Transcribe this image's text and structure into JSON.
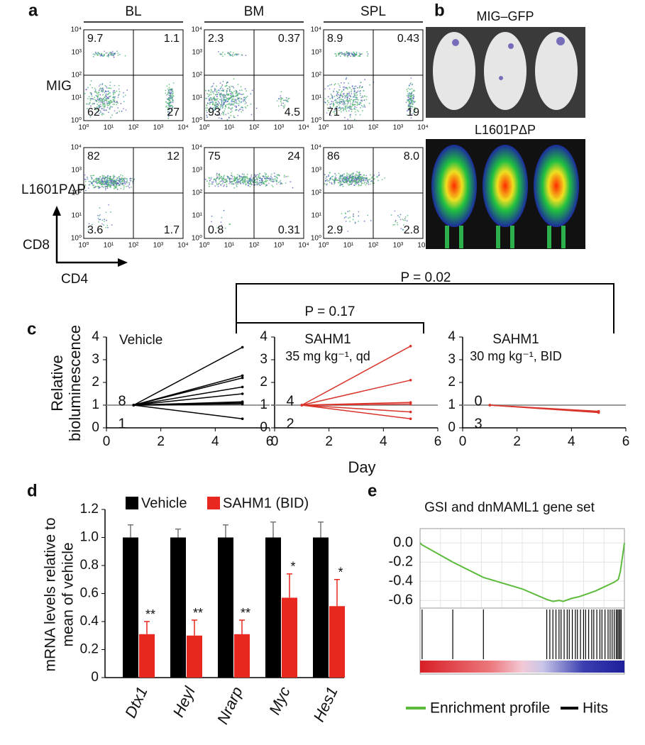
{
  "panel_labels": [
    "a",
    "b",
    "c",
    "d",
    "e"
  ],
  "flow": {
    "columns": [
      "BL",
      "BM",
      "SPL"
    ],
    "rows": [
      {
        "name": "MIG",
        "quadrants": [
          [
            9.7,
            1.1,
            62,
            27
          ],
          [
            2.3,
            0.37,
            93,
            4.5
          ],
          [
            8.9,
            0.43,
            71,
            19
          ]
        ]
      },
      {
        "name": "L1601PΔP",
        "quadrants": [
          [
            82,
            12,
            3.6,
            1.7
          ],
          [
            75,
            24,
            0.8,
            0.31
          ],
          [
            86,
            {
              "value": 8,
              "label": "8.0"
            },
            2.9,
            2.8
          ]
        ]
      }
    ],
    "ticks": [
      "10⁰",
      "10¹",
      "10²",
      "10³",
      "10⁴"
    ],
    "y_axis_label": "CD8",
    "x_axis_label": "CD4"
  },
  "imaging": {
    "titles": [
      "MIG–GFP",
      "L1601PΔP"
    ]
  },
  "comparisons": [
    "P = 0.17",
    "P = 0.02"
  ],
  "chart_data": [
    {
      "type": "line",
      "title": "Vehicle",
      "ylabel": [
        "Relative",
        "bioluminescence"
      ],
      "x": [
        1,
        5
      ],
      "count_above": 8,
      "count_below": 1,
      "hline": 1,
      "hline_color": "#999999",
      "xlim": [
        0,
        6
      ],
      "xticks": [
        0,
        2,
        4,
        6
      ],
      "ylim": [
        0,
        4
      ],
      "yticks": [
        0,
        1,
        2,
        3,
        4
      ],
      "series": [
        {
          "color": "#000000",
          "values": [
            1,
            3.55
          ]
        },
        {
          "color": "#000000",
          "values": [
            1,
            2.3
          ]
        },
        {
          "color": "#000000",
          "values": [
            1,
            2.2
          ]
        },
        {
          "color": "#000000",
          "values": [
            1,
            1.8
          ]
        },
        {
          "color": "#000000",
          "values": [
            1,
            1.5
          ]
        },
        {
          "color": "#000000",
          "values": [
            1,
            1.15
          ]
        },
        {
          "color": "#000000",
          "values": [
            1,
            1.1
          ]
        },
        {
          "color": "#000000",
          "values": [
            1,
            1.05
          ]
        },
        {
          "color": "#000000",
          "values": [
            1,
            0.4
          ]
        }
      ]
    },
    {
      "type": "line",
      "title": "SAHM1",
      "subtitle": "35 mg kg⁻¹, qd",
      "xlabel": "Day",
      "x": [
        1,
        5
      ],
      "count_above": 4,
      "count_below": 2,
      "hline": 1,
      "hline_color": "#999999",
      "xlim": [
        0,
        6
      ],
      "xticks": [
        0,
        2,
        4,
        6
      ],
      "ylim": [
        0,
        4
      ],
      "yticks": [
        0,
        1,
        2,
        3,
        4
      ],
      "series": [
        {
          "color": "#d9342b",
          "values": [
            1,
            3.6
          ]
        },
        {
          "color": "#d9342b",
          "values": [
            1,
            2.1
          ]
        },
        {
          "color": "#d9342b",
          "values": [
            1,
            1.12
          ]
        },
        {
          "color": "#d9342b",
          "values": [
            1,
            1.05
          ]
        },
        {
          "color": "#d9342b",
          "values": [
            1,
            0.7
          ]
        },
        {
          "color": "#d9342b",
          "values": [
            1,
            0.4
          ]
        }
      ]
    },
    {
      "type": "line",
      "title": "SAHM1",
      "subtitle": "30 mg kg⁻¹, BID",
      "x": [
        1,
        5
      ],
      "count_above": 0,
      "count_below": 3,
      "hline": 1,
      "hline_color": "#999999",
      "xlim": [
        0,
        6
      ],
      "xticks": [
        0,
        2,
        4,
        6
      ],
      "ylim": [
        0,
        4
      ],
      "yticks": [
        0,
        1,
        2,
        3,
        4
      ],
      "series": [
        {
          "color": "#d9342b",
          "values": [
            1,
            0.73
          ]
        },
        {
          "color": "#d9342b",
          "values": [
            1,
            0.7
          ]
        },
        {
          "color": "#d9342b",
          "values": [
            1,
            0.67
          ]
        }
      ]
    },
    {
      "type": "bar",
      "ylabel": [
        "mRNA levels relative to",
        "mean of vehicle"
      ],
      "categories": [
        "Dtx1",
        "Heyl",
        "Nrarp",
        "Myc",
        "Hes1"
      ],
      "ylim": [
        0,
        1.2
      ],
      "yticks": [
        0,
        0.2,
        0.4,
        0.6,
        0.8,
        {
          "value": 1,
          "label": "1.0"
        },
        1.2
      ],
      "series": [
        {
          "name": "Vehicle",
          "color": "#000000",
          "values": [
            1,
            1,
            1,
            1,
            1
          ],
          "errors": [
            0.09,
            0.06,
            0.09,
            0.11,
            0.11
          ]
        },
        {
          "name": "SAHM1 (BID)",
          "color": "#e8281e",
          "values": [
            0.31,
            0.3,
            0.31,
            0.57,
            0.51
          ],
          "errors": [
            0.09,
            0.11,
            0.1,
            0.17,
            0.19
          ]
        }
      ],
      "annotations": [
        "**",
        "**",
        "**",
        "*",
        "*"
      ]
    },
    {
      "type": "gsea",
      "title": "GSI and dnMAML1 gene set",
      "xlim": [
        0,
        100
      ],
      "ylim": [
        -0.68,
        0.15
      ],
      "yticks": [
        {
          "value": 0,
          "label": "0.0"
        },
        -0.2,
        -0.4,
        -0.6
      ],
      "series": [
        {
          "name": "Enrichment profile",
          "color": "#5dbb3c",
          "x": [
            0,
            1,
            16,
            31,
            50,
            62,
            65,
            68,
            70,
            74,
            78,
            82,
            86,
            90,
            93,
            95,
            97,
            98,
            99,
            100
          ],
          "values": [
            0,
            -0.02,
            -0.2,
            -0.36,
            -0.48,
            -0.59,
            -0.61,
            -0.6,
            -0.61,
            -0.58,
            -0.56,
            -0.53,
            -0.5,
            -0.46,
            -0.43,
            -0.41,
            -0.38,
            -0.3,
            -0.15,
            0
          ]
        }
      ],
      "hits": {
        "name": "Hits",
        "color": "#000000",
        "x": [
          1,
          16,
          31,
          62,
          63.5,
          65,
          66.5,
          68,
          69,
          70.5,
          72,
          73,
          74.5,
          76,
          77,
          78.5,
          80,
          81,
          82.5,
          84,
          85,
          86.5,
          88,
          89,
          90.5,
          92,
          93,
          94,
          95,
          96,
          96.6,
          97.2,
          97.8,
          98.4
        ]
      }
    }
  ]
}
